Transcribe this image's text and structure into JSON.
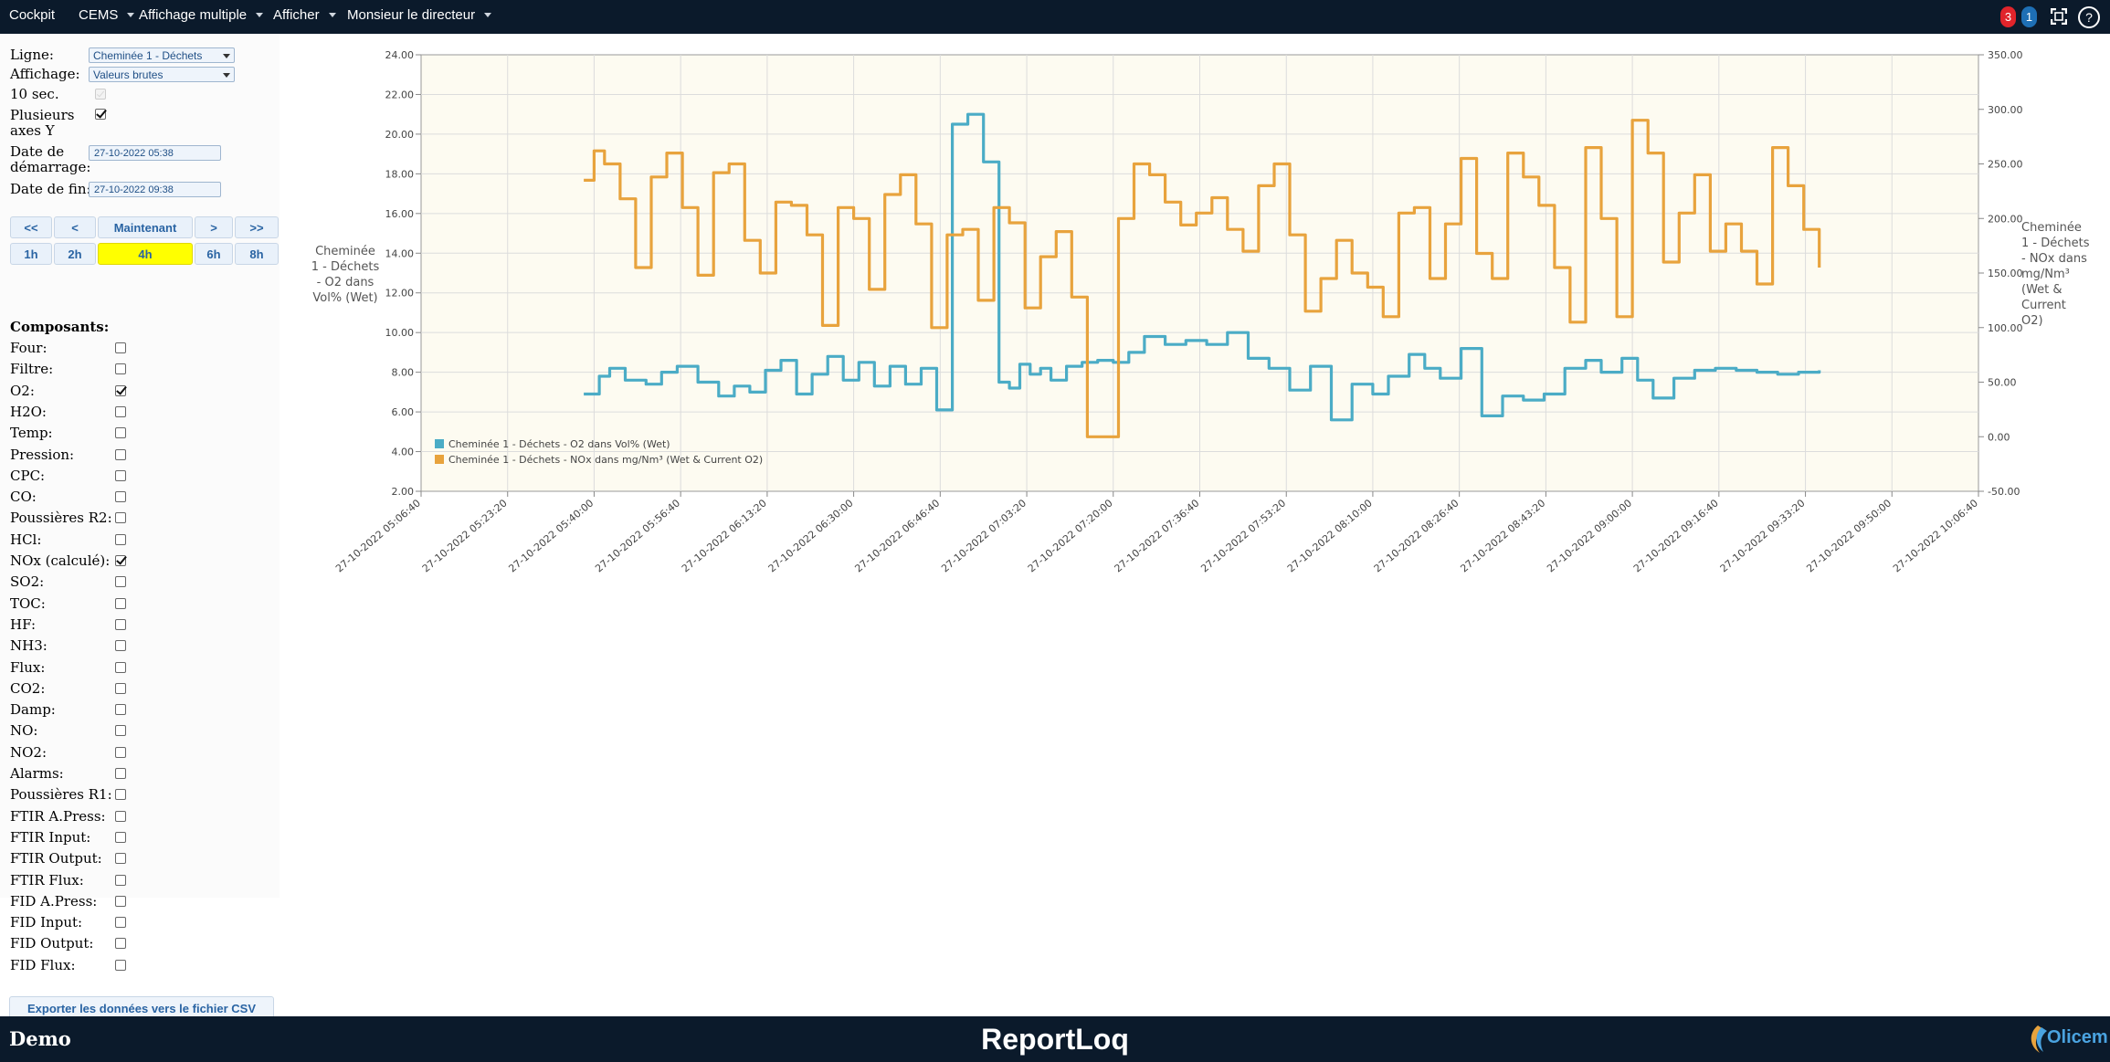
{
  "topbar": {
    "brand": "Cockpit",
    "menus": [
      "CEMS",
      "Affichage multiple",
      "Afficher",
      "Monsieur le directeur"
    ],
    "badge_red": "3",
    "badge_blue": "1",
    "help": "?"
  },
  "panel": {
    "ligne_label": "Ligne:",
    "ligne_value": "Cheminée 1 - Déchets",
    "affichage_label": "Affichage:",
    "affichage_value": "Valeurs brutes",
    "sec_label": "10 sec.",
    "multi_axes_label_1": "Plusieurs",
    "multi_axes_label_2": "axes Y",
    "start_label_1": "Date de",
    "start_label_2": "démarrage:",
    "start_value": "27-10-2022 05:38",
    "end_label": "Date de fin:",
    "end_value": "27-10-2022 09:38",
    "nav_buttons": [
      "<<",
      "<",
      "Maintenant",
      ">",
      ">>"
    ],
    "range_buttons": [
      "1h",
      "2h",
      "4h",
      "6h",
      "8h"
    ],
    "active_range": "4h",
    "components_title": "Composants:",
    "components": [
      {
        "label": "Four:",
        "checked": false
      },
      {
        "label": "Filtre:",
        "checked": false
      },
      {
        "label": "O2:",
        "checked": true
      },
      {
        "label": "H2O:",
        "checked": false
      },
      {
        "label": "Temp:",
        "checked": false
      },
      {
        "label": "Pression:",
        "checked": false
      },
      {
        "label": "CPC:",
        "checked": false
      },
      {
        "label": "CO:",
        "checked": false
      },
      {
        "label": "Poussières R2:",
        "checked": false
      },
      {
        "label": "HCl:",
        "checked": false
      },
      {
        "label": "NOx (calculé):",
        "checked": true
      },
      {
        "label": "SO2:",
        "checked": false
      },
      {
        "label": "TOC:",
        "checked": false
      },
      {
        "label": "HF:",
        "checked": false
      },
      {
        "label": "NH3:",
        "checked": false
      },
      {
        "label": "Flux:",
        "checked": false
      },
      {
        "label": "CO2:",
        "checked": false
      },
      {
        "label": "Damp:",
        "checked": false
      },
      {
        "label": "NO:",
        "checked": false
      },
      {
        "label": "NO2:",
        "checked": false
      },
      {
        "label": "Alarms:",
        "checked": false
      },
      {
        "label": "Poussières R1:",
        "checked": false
      },
      {
        "label": "FTIR A.Press:",
        "checked": false
      },
      {
        "label": "FTIR Input:",
        "checked": false
      },
      {
        "label": "FTIR Output:",
        "checked": false
      },
      {
        "label": "FTIR Flux:",
        "checked": false
      },
      {
        "label": "FID A.Press:",
        "checked": false
      },
      {
        "label": "FID Input:",
        "checked": false
      },
      {
        "label": "FID Output:",
        "checked": false
      },
      {
        "label": "FID Flux:",
        "checked": false
      }
    ],
    "export_label": "Exporter les données vers le fichier CSV"
  },
  "footer": {
    "left": "Demo",
    "center": "ReportLoq",
    "logo": "Olicem"
  },
  "colors": {
    "o2": "#4bacc6",
    "nox": "#e8a33d",
    "plot_bg": "#fdfbf1",
    "bar": "#0b1a2b"
  },
  "chart_data": {
    "type": "line",
    "y_left": {
      "title_lines": [
        "Cheminée",
        "1 - Déchets",
        "- O2 dans",
        "Vol% (Wet)"
      ],
      "ticks": [
        "24.00",
        "22.00",
        "20.00",
        "18.00",
        "16.00",
        "14.00",
        "12.00",
        "10.00",
        "8.00",
        "6.00",
        "4.00",
        "2.00"
      ],
      "range": [
        2,
        24
      ]
    },
    "y_right": {
      "title_lines": [
        "Cheminée",
        "1 - Déchets",
        "- NOx dans",
        "mg/Nm³",
        "(Wet &",
        "Current",
        "O2)"
      ],
      "ticks": [
        "350.00",
        "300.00",
        "250.00",
        "200.00",
        "150.00",
        "100.00",
        "50.00",
        "0.00",
        "-50.00"
      ],
      "range": [
        -50,
        350
      ]
    },
    "x_ticks": [
      "27-10-2022 05:06:40",
      "27-10-2022 05:23:20",
      "27-10-2022 05:40:00",
      "27-10-2022 05:56:40",
      "27-10-2022 06:13:20",
      "27-10-2022 06:30:00",
      "27-10-2022 06:46:40",
      "27-10-2022 07:03:20",
      "27-10-2022 07:20:00",
      "27-10-2022 07:36:40",
      "27-10-2022 07:53:20",
      "27-10-2022 08:10:00",
      "27-10-2022 08:26:40",
      "27-10-2022 08:43:20",
      "27-10-2022 09:00:00",
      "27-10-2022 09:16:40",
      "27-10-2022 09:33:20",
      "27-10-2022 09:50:00",
      "27-10-2022 10:06:40"
    ],
    "x_minutes_from_first_tick": [
      0,
      16.67,
      33.33,
      50,
      66.67,
      83.33,
      100,
      116.67,
      133.33,
      150,
      166.67,
      183.33,
      200,
      216.67,
      233.33,
      250,
      266.67,
      283.33,
      300
    ],
    "series": [
      {
        "name": "Cheminée 1 - Déchets - O2 dans Vol% (Wet)",
        "axis": "left",
        "x": [
          "05:38",
          "05:41",
          "05:43",
          "05:46",
          "05:50",
          "05:53",
          "05:56",
          "06:00",
          "06:04",
          "06:07",
          "06:10",
          "06:13",
          "06:16",
          "06:19",
          "06:22",
          "06:25",
          "06:28",
          "06:31",
          "06:34",
          "06:37",
          "06:40",
          "06:43",
          "06:46",
          "06:49",
          "06:52",
          "06:55",
          "06:58",
          "07:00",
          "07:02",
          "07:04",
          "07:06",
          "07:08",
          "07:11",
          "07:14",
          "07:17",
          "07:20",
          "07:23",
          "07:26",
          "07:30",
          "07:34",
          "07:38",
          "07:42",
          "07:46",
          "07:50",
          "07:54",
          "07:58",
          "08:02",
          "08:06",
          "08:10",
          "08:13",
          "08:17",
          "08:20",
          "08:23",
          "08:27",
          "08:31",
          "08:35",
          "08:39",
          "08:43",
          "08:47",
          "08:51",
          "08:54",
          "08:58",
          "09:01",
          "09:04",
          "09:08",
          "09:12",
          "09:16",
          "09:20",
          "09:24",
          "09:28",
          "09:32",
          "09:36"
        ],
        "values": [
          6.9,
          7.8,
          8.2,
          7.6,
          7.4,
          8.0,
          8.3,
          7.5,
          6.8,
          7.3,
          7.0,
          8.1,
          8.6,
          6.9,
          7.9,
          8.8,
          7.6,
          8.5,
          7.3,
          8.3,
          7.4,
          8.2,
          6.1,
          20.5,
          21.0,
          18.6,
          7.5,
          7.2,
          8.4,
          7.9,
          8.2,
          7.6,
          8.3,
          8.5,
          8.6,
          8.5,
          9.0,
          9.8,
          9.4,
          9.6,
          9.4,
          10.0,
          8.7,
          8.2,
          7.1,
          8.3,
          5.6,
          7.4,
          6.9,
          7.8,
          8.9,
          8.2,
          7.7,
          9.2,
          5.8,
          6.8,
          6.6,
          6.9,
          8.2,
          8.6,
          8.0,
          8.7,
          7.6,
          6.7,
          7.7,
          8.1,
          8.2,
          8.1,
          8.0,
          7.9,
          8.0,
          8.1
        ]
      },
      {
        "name": "Cheminée 1 - Déchets - NOx dans mg/Nm³ (Wet & Current O2)",
        "axis": "right",
        "x": [
          "05:38",
          "05:40",
          "05:42",
          "05:45",
          "05:48",
          "05:51",
          "05:54",
          "05:57",
          "06:00",
          "06:03",
          "06:06",
          "06:09",
          "06:12",
          "06:15",
          "06:18",
          "06:21",
          "06:24",
          "06:27",
          "06:30",
          "06:33",
          "06:36",
          "06:39",
          "06:42",
          "06:45",
          "06:48",
          "06:51",
          "06:54",
          "06:57",
          "07:00",
          "07:03",
          "07:06",
          "07:09",
          "07:12",
          "07:15",
          "07:18",
          "07:21",
          "07:24",
          "07:27",
          "07:30",
          "07:33",
          "07:36",
          "07:39",
          "07:42",
          "07:45",
          "07:48",
          "07:51",
          "07:54",
          "07:57",
          "08:00",
          "08:03",
          "08:06",
          "08:09",
          "08:12",
          "08:15",
          "08:18",
          "08:21",
          "08:24",
          "08:27",
          "08:30",
          "08:33",
          "08:36",
          "08:39",
          "08:42",
          "08:45",
          "08:48",
          "08:51",
          "08:54",
          "08:57",
          "09:00",
          "09:03",
          "09:06",
          "09:09",
          "09:12",
          "09:15",
          "09:18",
          "09:21",
          "09:24",
          "09:27",
          "09:30",
          "09:33",
          "09:36"
        ],
        "values": [
          235,
          262,
          250,
          218,
          155,
          238,
          260,
          210,
          148,
          242,
          250,
          180,
          150,
          215,
          212,
          185,
          102,
          210,
          200,
          135,
          222,
          240,
          195,
          100,
          185,
          190,
          125,
          210,
          196,
          118,
          165,
          188,
          128,
          0,
          0,
          200,
          250,
          240,
          215,
          194,
          205,
          219,
          190,
          170,
          230,
          250,
          185,
          115,
          145,
          180,
          150,
          137,
          110,
          205,
          210,
          145,
          195,
          255,
          168,
          145,
          260,
          238,
          212,
          155,
          105,
          265,
          200,
          110,
          290,
          260,
          160,
          205,
          240,
          170,
          195,
          170,
          140,
          265,
          230,
          190,
          155
        ]
      }
    ],
    "legend": [
      "Cheminée 1 - Déchets - O2 dans Vol% (Wet)",
      "Cheminée 1 - Déchets - NOx dans mg/Nm³ (Wet & Current O2)"
    ],
    "legend_position": "bottom-left",
    "grid": true
  }
}
